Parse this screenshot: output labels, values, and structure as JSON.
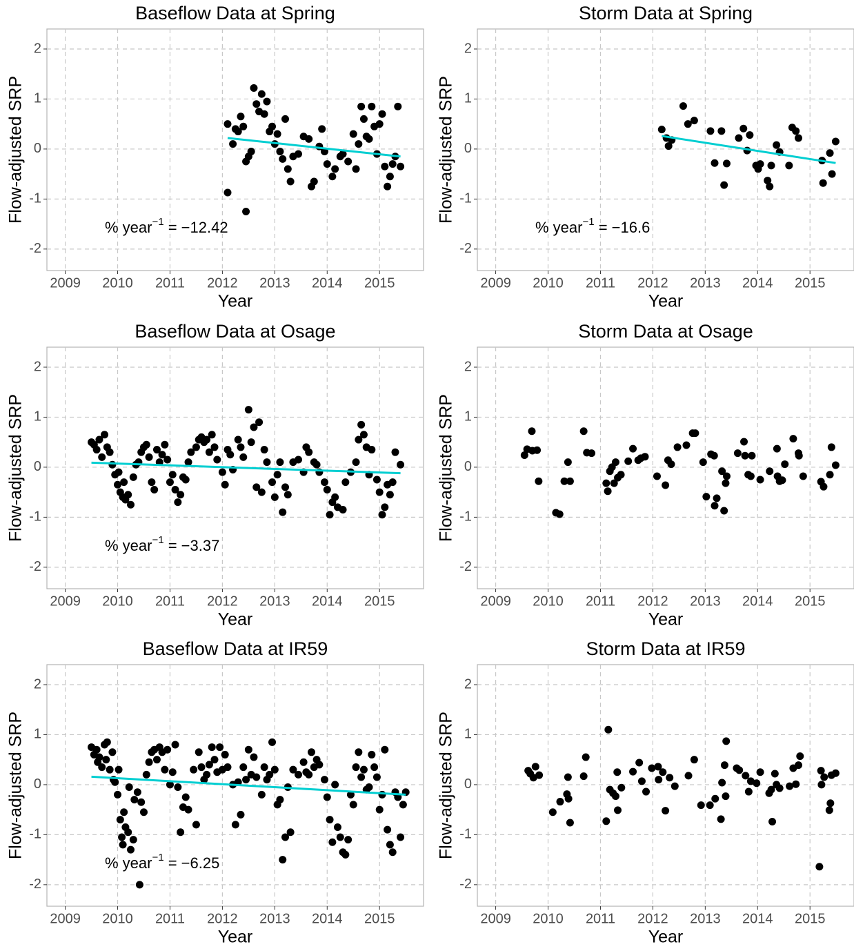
{
  "chart_data": [
    {
      "type": "scatter",
      "title": "Baseflow Data at Spring",
      "xlabel": "Year",
      "ylabel": "Flow-adjusted SRP",
      "color": "#000000",
      "grid": true,
      "xlim": [
        2008.65,
        2015.84
      ],
      "ylim": [
        -2.43,
        2.4
      ],
      "xticks": [
        2009,
        2010,
        2011,
        2012,
        2013,
        2014,
        2015
      ],
      "yticks": [
        -2,
        -1,
        0,
        1,
        2
      ],
      "x": [
        2012.1,
        2012.1,
        2012.2,
        2012.25,
        2012.3,
        2012.35,
        2012.4,
        2012.45,
        2012.45,
        2012.5,
        2012.55,
        2012.6,
        2012.65,
        2012.7,
        2012.75,
        2012.8,
        2012.85,
        2012.9,
        2012.95,
        2013.0,
        2013.05,
        2013.1,
        2013.15,
        2013.2,
        2013.25,
        2013.3,
        2013.35,
        2013.45,
        2013.55,
        2013.65,
        2013.7,
        2013.75,
        2013.85,
        2013.9,
        2013.95,
        2014.0,
        2014.1,
        2014.15,
        2014.25,
        2014.3,
        2014.4,
        2014.5,
        2014.55,
        2014.6,
        2014.65,
        2014.7,
        2014.75,
        2014.8,
        2014.85,
        2014.9,
        2014.95,
        2015.0,
        2015.05,
        2015.1,
        2015.15,
        2015.2,
        2015.25,
        2015.3,
        2015.35,
        2015.4
      ],
      "values": [
        0.5,
        -0.87,
        0.1,
        0.4,
        0.35,
        0.65,
        0.45,
        -0.25,
        -1.25,
        -0.15,
        -0.05,
        1.22,
        0.9,
        0.75,
        1.1,
        0.7,
        0.95,
        0.35,
        0.45,
        0.1,
        0.3,
        -0.05,
        -0.2,
        0.6,
        -0.4,
        -0.65,
        -0.15,
        -0.1,
        0.25,
        0.2,
        -0.75,
        -0.65,
        0.05,
        0.4,
        -0.05,
        -0.3,
        -0.55,
        -0.4,
        -0.15,
        -0.1,
        -0.25,
        0.3,
        -0.4,
        0.1,
        0.85,
        0.6,
        0.25,
        0.2,
        0.85,
        0.45,
        -0.1,
        0.5,
        0.7,
        -0.35,
        -0.75,
        -0.55,
        -0.3,
        -0.15,
        0.85,
        -0.35
      ],
      "trend": {
        "color": "#00CED1",
        "x": [
          2012.1,
          2015.4
        ],
        "values": [
          0.22,
          -0.15
        ]
      },
      "annotation": "% year",
      "annotation_sup": "−1",
      "annotation_value": " = −12.42"
    },
    {
      "type": "scatter",
      "title": "Storm Data at Spring",
      "xlabel": "Year",
      "ylabel": "Flow-adjusted SRP",
      "color": "#000000",
      "grid": true,
      "xlim": [
        2008.65,
        2015.84
      ],
      "ylim": [
        -2.43,
        2.4
      ],
      "xticks": [
        2009,
        2010,
        2011,
        2012,
        2013,
        2014,
        2015
      ],
      "yticks": [
        -2,
        -1,
        0,
        1,
        2
      ],
      "x": [
        2012.17,
        2012.26,
        2012.3,
        2012.36,
        2012.58,
        2012.67,
        2012.79,
        2013.1,
        2013.18,
        2013.31,
        2013.36,
        2013.41,
        2013.64,
        2013.73,
        2013.8,
        2013.85,
        2013.97,
        2014.01,
        2014.05,
        2014.19,
        2014.23,
        2014.26,
        2014.36,
        2014.42,
        2014.6,
        2014.66,
        2014.73,
        2014.78,
        2015.23,
        2015.25,
        2015.38,
        2015.42,
        2015.49
      ],
      "values": [
        0.39,
        0.22,
        0.06,
        0.18,
        0.86,
        0.5,
        0.57,
        0.36,
        -0.28,
        0.36,
        -0.72,
        -0.29,
        0.22,
        0.41,
        -0.03,
        0.28,
        -0.33,
        -0.4,
        -0.3,
        -0.63,
        -0.75,
        -0.33,
        0.08,
        -0.06,
        -0.33,
        0.43,
        0.36,
        0.22,
        -0.23,
        -0.68,
        -0.08,
        -0.5,
        0.15
      ],
      "trend": {
        "color": "#00CED1",
        "x": [
          2012.17,
          2015.49
        ],
        "values": [
          0.26,
          -0.28
        ]
      },
      "annotation": "% year",
      "annotation_sup": "−1",
      "annotation_value": " = −16.6"
    },
    {
      "type": "scatter",
      "title": "Baseflow Data at Osage",
      "xlabel": "Year",
      "ylabel": "Flow-adjusted SRP",
      "color": "#000000",
      "grid": true,
      "xlim": [
        2008.65,
        2015.84
      ],
      "ylim": [
        -2.43,
        2.4
      ],
      "xticks": [
        2009,
        2010,
        2011,
        2012,
        2013,
        2014,
        2015
      ],
      "yticks": [
        -2,
        -1,
        0,
        1,
        2
      ],
      "x": [
        2009.5,
        2009.55,
        2009.6,
        2009.65,
        2009.7,
        2009.75,
        2009.8,
        2009.85,
        2009.9,
        2009.95,
        2010.0,
        2010.02,
        2010.05,
        2010.1,
        2010.12,
        2010.15,
        2010.2,
        2010.25,
        2010.3,
        2010.35,
        2010.4,
        2010.45,
        2010.5,
        2010.55,
        2010.6,
        2010.65,
        2010.7,
        2010.75,
        2010.8,
        2010.85,
        2010.9,
        2010.95,
        2011.0,
        2011.05,
        2011.1,
        2011.15,
        2011.2,
        2011.25,
        2011.3,
        2011.35,
        2011.4,
        2011.5,
        2011.55,
        2011.6,
        2011.65,
        2011.7,
        2011.75,
        2011.8,
        2011.85,
        2011.9,
        2012.0,
        2012.05,
        2012.1,
        2012.15,
        2012.2,
        2012.3,
        2012.35,
        2012.4,
        2012.5,
        2012.55,
        2012.6,
        2012.65,
        2012.7,
        2012.75,
        2012.8,
        2012.85,
        2012.95,
        2013.0,
        2013.05,
        2013.1,
        2013.15,
        2013.2,
        2013.25,
        2013.35,
        2013.45,
        2013.55,
        2013.6,
        2013.65,
        2013.75,
        2013.8,
        2013.85,
        2013.95,
        2014.0,
        2014.05,
        2014.1,
        2014.15,
        2014.2,
        2014.3,
        2014.35,
        2014.45,
        2014.55,
        2014.6,
        2014.65,
        2014.7,
        2014.75,
        2014.8,
        2014.85,
        2014.95,
        2015.0,
        2015.05,
        2015.1,
        2015.15,
        2015.2,
        2015.25,
        2015.3,
        2015.4
      ],
      "values": [
        0.5,
        0.45,
        0.35,
        0.55,
        0.2,
        0.65,
        0.4,
        0.3,
        0.05,
        -0.15,
        -0.35,
        -0.1,
        -0.5,
        -0.6,
        -0.3,
        -0.65,
        -0.55,
        -0.75,
        -0.2,
        0.05,
        0.1,
        0.3,
        0.4,
        0.45,
        0.2,
        -0.3,
        -0.45,
        0.35,
        0.1,
        0.25,
        0.45,
        0.15,
        -0.3,
        -0.15,
        -0.45,
        -0.7,
        -0.55,
        -0.2,
        -0.25,
        0.1,
        0.3,
        0.4,
        0.55,
        0.6,
        0.5,
        0.55,
        0.3,
        0.65,
        0.4,
        0.15,
        -0.1,
        -0.35,
        0.35,
        0.25,
        -0.05,
        0.55,
        0.4,
        0.2,
        1.15,
        0.5,
        0.8,
        -0.4,
        0.9,
        -0.5,
        0.35,
        0.1,
        -0.3,
        -0.6,
        -0.15,
        0.1,
        -0.9,
        -0.4,
        -0.55,
        0.1,
        0.15,
        -0.1,
        0.4,
        0.3,
        0.1,
        0.05,
        -0.1,
        -0.3,
        -0.45,
        -0.95,
        -0.7,
        -0.6,
        -0.8,
        -0.85,
        -0.3,
        -0.1,
        0.1,
        0.55,
        0.85,
        0.65,
        0.4,
        -0.15,
        0.35,
        -0.25,
        -0.5,
        -0.95,
        -0.8,
        -0.35,
        -0.55,
        -0.3,
        0.3,
        0.05
      ],
      "trend": {
        "color": "#00CED1",
        "x": [
          2009.5,
          2015.4
        ],
        "values": [
          0.09,
          -0.12
        ]
      },
      "annotation": "% year",
      "annotation_sup": "−1",
      "annotation_value": " = −3.37"
    },
    {
      "type": "scatter",
      "title": "Storm Data at Osage",
      "xlabel": "Year",
      "ylabel": "Flow-adjusted SRP",
      "color": "#000000",
      "grid": true,
      "xlim": [
        2008.65,
        2015.84
      ],
      "ylim": [
        -2.43,
        2.4
      ],
      "xticks": [
        2009,
        2010,
        2011,
        2012,
        2013,
        2014,
        2015
      ],
      "yticks": [
        -2,
        -1,
        0,
        1,
        2
      ],
      "x": [
        2009.55,
        2009.6,
        2009.69,
        2009.7,
        2009.79,
        2009.82,
        2010.15,
        2010.22,
        2010.31,
        2010.38,
        2010.42,
        2010.68,
        2010.74,
        2010.83,
        2011.11,
        2011.14,
        2011.18,
        2011.22,
        2011.26,
        2011.29,
        2011.33,
        2011.39,
        2011.53,
        2011.62,
        2011.72,
        2011.77,
        2011.85,
        2012.08,
        2012.24,
        2012.29,
        2012.35,
        2012.47,
        2012.64,
        2012.76,
        2012.81,
        2012.96,
        2013.02,
        2013.11,
        2013.17,
        2013.18,
        2013.22,
        2013.32,
        2013.36,
        2013.39,
        2013.41,
        2013.62,
        2013.74,
        2013.76,
        2013.82,
        2013.87,
        2013.89,
        2014.05,
        2014.23,
        2014.37,
        2014.38,
        2014.42,
        2014.47,
        2014.52,
        2014.68,
        2014.78,
        2014.79,
        2014.87,
        2015.21,
        2015.26,
        2015.38,
        2015.41,
        2015.49
      ],
      "values": [
        0.24,
        0.36,
        0.72,
        0.33,
        0.34,
        -0.28,
        -0.91,
        -0.94,
        -0.28,
        0.1,
        -0.28,
        0.72,
        0.29,
        0.28,
        -0.32,
        -0.48,
        -0.08,
        0,
        -0.32,
        0.1,
        -0.21,
        -0.15,
        0.12,
        0.37,
        0.14,
        0.18,
        0.21,
        -0.18,
        -0.36,
        0.14,
        0.06,
        0.4,
        0.44,
        0.68,
        0.68,
        0.1,
        -0.59,
        0.26,
        0.23,
        -0.77,
        -0.62,
        -0.08,
        -0.87,
        -0.32,
        -0.18,
        0.28,
        0.51,
        0.23,
        -0.15,
        -0.18,
        0.23,
        -0.25,
        -0.08,
        0.37,
        -0.18,
        -0.28,
        -0.26,
        0.06,
        0.57,
        0.28,
        0.23,
        -0.18,
        -0.29,
        -0.39,
        -0.15,
        0.4,
        0.04
      ]
    },
    {
      "type": "scatter",
      "title": "Baseflow Data at IR59",
      "xlabel": "Year",
      "ylabel": "Flow-adjusted SRP",
      "color": "#000000",
      "grid": true,
      "xlim": [
        2008.65,
        2015.84
      ],
      "ylim": [
        -2.43,
        2.4
      ],
      "xticks": [
        2009,
        2010,
        2011,
        2012,
        2013,
        2014,
        2015
      ],
      "yticks": [
        -2,
        -1,
        0,
        1,
        2
      ],
      "x": [
        2009.5,
        2009.55,
        2009.6,
        2009.62,
        2009.65,
        2009.7,
        2009.75,
        2009.78,
        2009.8,
        2009.85,
        2009.9,
        2009.92,
        2009.95,
        2010.0,
        2010.02,
        2010.05,
        2010.08,
        2010.1,
        2010.12,
        2010.15,
        2010.2,
        2010.22,
        2010.25,
        2010.3,
        2010.32,
        2010.38,
        2010.42,
        2010.45,
        2010.5,
        2010.55,
        2010.6,
        2010.65,
        2010.7,
        2010.75,
        2010.8,
        2010.85,
        2010.9,
        2010.95,
        2011.0,
        2011.05,
        2011.1,
        2011.15,
        2011.2,
        2011.25,
        2011.3,
        2011.35,
        2011.45,
        2011.5,
        2011.55,
        2011.6,
        2011.65,
        2011.7,
        2011.75,
        2011.8,
        2011.85,
        2011.9,
        2011.95,
        2012.0,
        2012.05,
        2012.1,
        2012.2,
        2012.25,
        2012.3,
        2012.35,
        2012.4,
        2012.45,
        2012.5,
        2012.55,
        2012.6,
        2012.65,
        2012.75,
        2012.8,
        2012.85,
        2012.9,
        2012.95,
        2013.0,
        2013.05,
        2013.1,
        2013.15,
        2013.2,
        2013.25,
        2013.3,
        2013.35,
        2013.45,
        2013.55,
        2013.6,
        2013.65,
        2013.7,
        2013.75,
        2013.8,
        2013.85,
        2013.95,
        2014.0,
        2014.05,
        2014.1,
        2014.15,
        2014.2,
        2014.25,
        2014.3,
        2014.35,
        2014.4,
        2014.45,
        2014.5,
        2014.55,
        2014.6,
        2014.65,
        2014.7,
        2014.75,
        2014.8,
        2014.85,
        2014.9,
        2014.95,
        2015.0,
        2015.05,
        2015.1,
        2015.15,
        2015.2,
        2015.25,
        2015.3,
        2015.35,
        2015.4,
        2015.45,
        2015.5
      ],
      "values": [
        0.75,
        0.6,
        0.7,
        0.45,
        0.55,
        0.35,
        0.8,
        0.5,
        0.85,
        0.3,
        0.65,
        0.1,
        0.05,
        -0.2,
        0.3,
        -0.7,
        -1.05,
        -1.2,
        -0.55,
        -0.85,
        -0.95,
        -0.05,
        -1.3,
        -1.1,
        -0.3,
        -0.15,
        -2.0,
        -0.35,
        -0.55,
        0.2,
        0.45,
        0.65,
        0.7,
        0.5,
        0.75,
        0.65,
        0.3,
        0.7,
        0.0,
        0.25,
        0.8,
        -0.05,
        -0.95,
        -0.45,
        -0.25,
        -0.5,
        0.3,
        -0.8,
        0.65,
        0.35,
        0.1,
        0.2,
        0.4,
        0.75,
        0.5,
        0.25,
        0.75,
        0.3,
        0.6,
        0.35,
        0.0,
        -0.8,
        0.05,
        -0.6,
        0.35,
        0.1,
        0.7,
        0.2,
        0.55,
        0.15,
        -0.2,
        0.35,
        0.1,
        0.2,
        0.85,
        0.3,
        -0.4,
        -0.3,
        -1.5,
        -1.05,
        -0.05,
        -0.95,
        0.3,
        0.2,
        0.45,
        0.25,
        0.2,
        0.65,
        0.35,
        0.5,
        0.4,
        0.1,
        -0.25,
        -0.7,
        -1.15,
        0.0,
        -0.85,
        -1.05,
        -1.35,
        -1.4,
        -1.1,
        -0.2,
        -0.4,
        0.35,
        0.65,
        0.15,
        0.3,
        -0.1,
        -0.05,
        0.6,
        0.35,
        0.15,
        -0.5,
        -0.2,
        0.7,
        -0.9,
        -1.2,
        -1.35,
        -0.15,
        -0.25,
        -1.05,
        -0.4,
        -0.15
      ],
      "trend": {
        "color": "#00CED1",
        "x": [
          2009.5,
          2015.5
        ],
        "values": [
          0.16,
          -0.2
        ]
      },
      "annotation": "% year",
      "annotation_sup": "−1",
      "annotation_value": " = −6.25"
    },
    {
      "type": "scatter",
      "title": "Storm Data at IR59",
      "xlabel": "Year",
      "ylabel": "Flow-adjusted SRP",
      "color": "#000000",
      "grid": true,
      "xlim": [
        2008.65,
        2015.84
      ],
      "ylim": [
        -2.43,
        2.4
      ],
      "xticks": [
        2009,
        2010,
        2011,
        2012,
        2013,
        2014,
        2015
      ],
      "yticks": [
        -2,
        -1,
        0,
        1,
        2
      ],
      "x": [
        2009.62,
        2009.66,
        2009.72,
        2009.76,
        2009.83,
        2010.09,
        2010.23,
        2010.36,
        2010.38,
        2010.39,
        2010.42,
        2010.68,
        2010.72,
        2011.11,
        2011.15,
        2011.18,
        2011.24,
        2011.29,
        2011.32,
        2011.33,
        2011.4,
        2011.62,
        2011.74,
        2011.79,
        2011.87,
        2011.98,
        2012.1,
        2012.11,
        2012.19,
        2012.24,
        2012.32,
        2012.42,
        2012.68,
        2012.79,
        2012.92,
        2013.09,
        2013.19,
        2013.3,
        2013.32,
        2013.37,
        2013.39,
        2013.4,
        2013.6,
        2013.65,
        2013.77,
        2013.83,
        2013.87,
        2013.98,
        2014.05,
        2014.22,
        2014.26,
        2014.28,
        2014.33,
        2014.36,
        2014.42,
        2014.61,
        2014.68,
        2014.73,
        2014.78,
        2014.81,
        2015.18,
        2015.21,
        2015.22,
        2015.27,
        2015.37,
        2015.39,
        2015.41,
        2015.49
      ],
      "values": [
        0.28,
        0.22,
        0.14,
        0.36,
        0.19,
        -0.55,
        -0.34,
        -0.19,
        0.15,
        -0.28,
        -0.76,
        0.17,
        0.55,
        -0.73,
        1.1,
        -0.1,
        -0.17,
        -0.23,
        0.25,
        -0.51,
        -0.06,
        0.26,
        0.44,
        0.07,
        -0.14,
        0.33,
        0.36,
        0.1,
        0.25,
        -0.52,
        0.14,
        -0.03,
        0.18,
        0.5,
        -0.41,
        -0.41,
        -0.28,
        -0.69,
        0.04,
        0.39,
        -0.23,
        0.87,
        0.33,
        0.29,
        0.18,
        -0.14,
        0.07,
        0.03,
        0.25,
        -0.17,
        -0.1,
        -0.74,
        0.22,
        0,
        -0.07,
        -0.03,
        0.33,
        0.01,
        0.39,
        0.57,
        -1.64,
        0.28,
        0,
        0.15,
        -0.51,
        -0.37,
        0.19,
        0.23
      ]
    }
  ]
}
